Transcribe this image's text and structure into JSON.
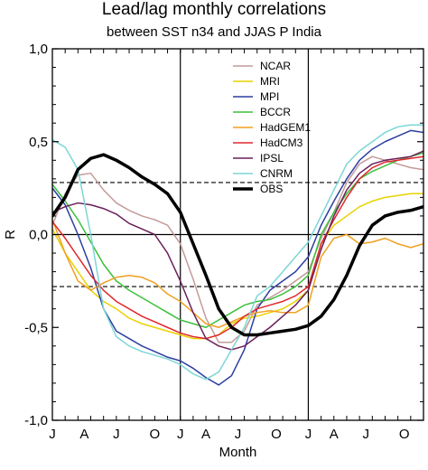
{
  "chart_data": {
    "type": "line",
    "title": "Lead/lag monthly correlations",
    "subtitle": "between SST n34 and JJAS P India",
    "xlabel": "Month",
    "ylabel": "R",
    "ylim": [
      -1.0,
      1.0
    ],
    "yticks": [
      1.0,
      0.5,
      0.0,
      -0.5,
      -1.0
    ],
    "ytick_labels": [
      "1,0",
      "0,5",
      "0,0",
      "-0,5",
      "-1,0"
    ],
    "xlim": [
      0,
      29
    ],
    "x_tick_labels": [
      "J",
      "A",
      "J",
      "O",
      "J",
      "A",
      "J",
      "O",
      "J",
      "A",
      "J",
      "O"
    ],
    "x_tick_values": [
      0,
      2.5,
      5,
      8,
      10,
      12,
      14.5,
      17.5,
      20,
      22,
      24.5,
      27.5
    ],
    "x": [
      0,
      1,
      2,
      3,
      4,
      5,
      6,
      7,
      8,
      9,
      10,
      11,
      12,
      13,
      14,
      15,
      16,
      17,
      18,
      19,
      20,
      21,
      22,
      23,
      24,
      25,
      26,
      27,
      28,
      29
    ],
    "reference_lines": [
      {
        "type": "vertical",
        "x": 10,
        "style": "solid"
      },
      {
        "type": "vertical",
        "x": 20,
        "style": "solid"
      },
      {
        "type": "horizontal",
        "y": 0.0,
        "style": "solid"
      },
      {
        "type": "horizontal",
        "y": 0.28,
        "style": "dashed"
      },
      {
        "type": "horizontal",
        "y": -0.28,
        "style": "dashed"
      }
    ],
    "legend_position": "top-right",
    "series": [
      {
        "name": "NCAR",
        "color": "#c49a9a",
        "width": 1.5,
        "values": [
          0.05,
          0.22,
          0.32,
          0.33,
          0.24,
          0.17,
          0.13,
          0.1,
          0.08,
          0.05,
          -0.05,
          -0.24,
          -0.45,
          -0.58,
          -0.58,
          -0.52,
          -0.38,
          -0.34,
          -0.3,
          -0.25,
          -0.2,
          -0.02,
          0.12,
          0.28,
          0.38,
          0.42,
          0.4,
          0.38,
          0.36,
          0.35
        ]
      },
      {
        "name": "MRI",
        "color": "#e8d200",
        "width": 1.5,
        "values": [
          0.03,
          -0.1,
          -0.2,
          -0.3,
          -0.36,
          -0.4,
          -0.45,
          -0.48,
          -0.5,
          -0.52,
          -0.54,
          -0.56,
          -0.56,
          -0.54,
          -0.48,
          -0.45,
          -0.44,
          -0.42,
          -0.4,
          -0.36,
          -0.3,
          -0.05,
          0.05,
          0.1,
          0.15,
          0.18,
          0.2,
          0.21,
          0.22,
          0.22
        ]
      },
      {
        "name": "MPI",
        "color": "#2c3ea0",
        "width": 1.5,
        "values": [
          0.25,
          0.16,
          0.0,
          -0.18,
          -0.4,
          -0.52,
          -0.56,
          -0.6,
          -0.63,
          -0.66,
          -0.68,
          -0.72,
          -0.77,
          -0.81,
          -0.76,
          -0.62,
          -0.4,
          -0.3,
          -0.25,
          -0.2,
          -0.12,
          0.05,
          0.18,
          0.3,
          0.4,
          0.46,
          0.5,
          0.53,
          0.56,
          0.55
        ]
      },
      {
        "name": "BCCR",
        "color": "#3cbf3c",
        "width": 1.5,
        "values": [
          0.27,
          0.18,
          0.08,
          -0.04,
          -0.16,
          -0.25,
          -0.3,
          -0.34,
          -0.38,
          -0.42,
          -0.46,
          -0.48,
          -0.5,
          -0.46,
          -0.42,
          -0.38,
          -0.36,
          -0.35,
          -0.32,
          -0.28,
          -0.22,
          0.0,
          0.12,
          0.22,
          0.3,
          0.34,
          0.37,
          0.4,
          0.42,
          0.44
        ]
      },
      {
        "name": "HadGEM1",
        "color": "#f0a020",
        "width": 1.5,
        "values": [
          0.08,
          -0.1,
          -0.25,
          -0.3,
          -0.26,
          -0.23,
          -0.22,
          -0.23,
          -0.26,
          -0.32,
          -0.36,
          -0.42,
          -0.48,
          -0.5,
          -0.47,
          -0.44,
          -0.42,
          -0.41,
          -0.42,
          -0.42,
          -0.38,
          -0.12,
          -0.02,
          0.0,
          -0.05,
          -0.04,
          -0.02,
          -0.05,
          -0.07,
          -0.05
        ]
      },
      {
        "name": "HadCM3",
        "color": "#e0282d",
        "width": 1.5,
        "values": [
          0.07,
          -0.02,
          -0.12,
          -0.22,
          -0.3,
          -0.36,
          -0.4,
          -0.44,
          -0.47,
          -0.5,
          -0.53,
          -0.55,
          -0.56,
          -0.54,
          -0.5,
          -0.44,
          -0.4,
          -0.38,
          -0.36,
          -0.33,
          -0.28,
          -0.05,
          0.08,
          0.2,
          0.3,
          0.36,
          0.39,
          0.4,
          0.41,
          0.42
        ]
      },
      {
        "name": "IPSL",
        "color": "#6a1f5a",
        "width": 1.5,
        "values": [
          0.12,
          0.15,
          0.17,
          0.16,
          0.14,
          0.11,
          0.06,
          0.03,
          0.0,
          -0.1,
          -0.25,
          -0.42,
          -0.56,
          -0.6,
          -0.62,
          -0.6,
          -0.55,
          -0.5,
          -0.44,
          -0.38,
          -0.3,
          -0.08,
          0.1,
          0.24,
          0.33,
          0.38,
          0.4,
          0.41,
          0.42,
          0.45
        ]
      },
      {
        "name": "CNRM",
        "color": "#7dd6d6",
        "width": 1.5,
        "values": [
          0.51,
          0.47,
          0.35,
          0.0,
          -0.4,
          -0.55,
          -0.6,
          -0.63,
          -0.65,
          -0.67,
          -0.7,
          -0.75,
          -0.78,
          -0.74,
          -0.62,
          -0.5,
          -0.33,
          -0.28,
          -0.2,
          -0.12,
          -0.04,
          0.1,
          0.24,
          0.38,
          0.45,
          0.5,
          0.55,
          0.58,
          0.59,
          0.59
        ]
      },
      {
        "name": "OBS",
        "color": "#000000",
        "width": 3.5,
        "values": [
          0.1,
          0.2,
          0.35,
          0.41,
          0.43,
          0.4,
          0.36,
          0.31,
          0.27,
          0.22,
          0.12,
          -0.05,
          -0.22,
          -0.4,
          -0.5,
          -0.54,
          -0.54,
          -0.53,
          -0.52,
          -0.51,
          -0.49,
          -0.44,
          -0.35,
          -0.22,
          -0.06,
          0.05,
          0.1,
          0.12,
          0.13,
          0.15
        ]
      }
    ]
  }
}
